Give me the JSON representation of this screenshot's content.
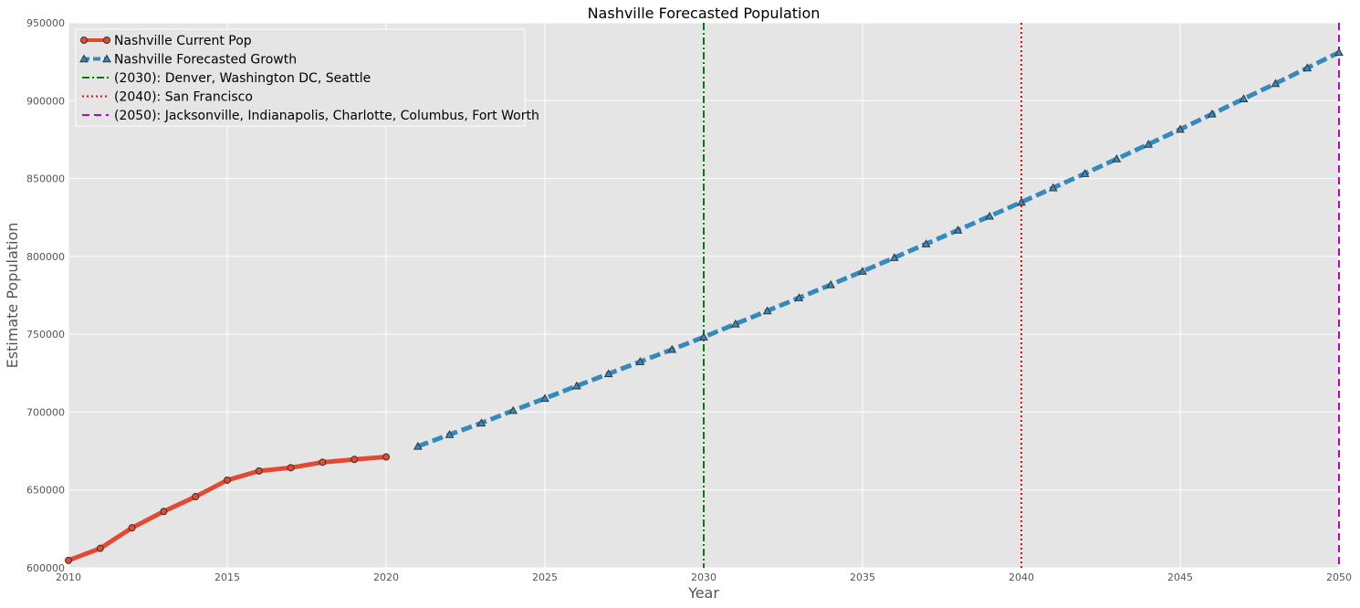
{
  "chart_data": {
    "type": "line",
    "title": "Nashville Forecasted Population",
    "xlabel": "Year",
    "ylabel": "Estimate Population",
    "xlim": [
      2010,
      2050
    ],
    "ylim": [
      600000,
      950000
    ],
    "xticks": [
      2010,
      2015,
      2020,
      2025,
      2030,
      2035,
      2040,
      2045,
      2050
    ],
    "yticks": [
      600000,
      650000,
      700000,
      750000,
      800000,
      850000,
      900000,
      950000
    ],
    "xtick_labels": [
      "2010",
      "2015",
      "2020",
      "2025",
      "2030",
      "2035",
      "2040",
      "2045",
      "2050"
    ],
    "ytick_labels": [
      "600000",
      "650000",
      "700000",
      "750000",
      "800000",
      "850000",
      "900000",
      "950000"
    ],
    "grid": true,
    "legend_position": "top-left",
    "series": [
      {
        "name": "Nashville Current Pop",
        "color": "#E24A33",
        "marker": "circle",
        "line_style": "solid",
        "x": [
          2010,
          2011,
          2012,
          2013,
          2014,
          2015,
          2016,
          2017,
          2018,
          2019,
          2020
        ],
        "y": [
          604800,
          612500,
          625700,
          636200,
          645700,
          656300,
          662200,
          664300,
          667800,
          669600,
          671200
        ]
      },
      {
        "name": "Nashville Forecasted Growth",
        "color": "#348ABD",
        "marker": "triangle",
        "line_style": "dashed",
        "x": [
          2021,
          2022,
          2023,
          2024,
          2025,
          2026,
          2027,
          2028,
          2029,
          2030,
          2031,
          2032,
          2033,
          2034,
          2035,
          2036,
          2037,
          2038,
          2039,
          2040,
          2041,
          2042,
          2043,
          2044,
          2045,
          2046,
          2047,
          2048,
          2049,
          2050
        ],
        "y": [
          678000,
          685600,
          693000,
          701000,
          708800,
          716800,
          724600,
          732400,
          740200,
          748200,
          756600,
          765000,
          773400,
          781800,
          790400,
          799200,
          808000,
          816800,
          825800,
          834800,
          844000,
          853200,
          862600,
          872000,
          881600,
          891400,
          901200,
          911000,
          921000,
          931000
        ]
      }
    ],
    "reference_lines": [
      {
        "name": "(2030): Denver, Washington DC, Seattle",
        "x": 2030,
        "color": "#008000",
        "line_style": "dashdot"
      },
      {
        "name": "(2040): San Francisco",
        "x": 2040,
        "color": "#FF0000",
        "line_style": "dotted"
      },
      {
        "name": "(2050): Jacksonville, Indianapolis, Charlotte, Columbus, Fort Worth",
        "x": 2050,
        "color": "#BF00BF",
        "line_style": "dashed"
      }
    ]
  }
}
